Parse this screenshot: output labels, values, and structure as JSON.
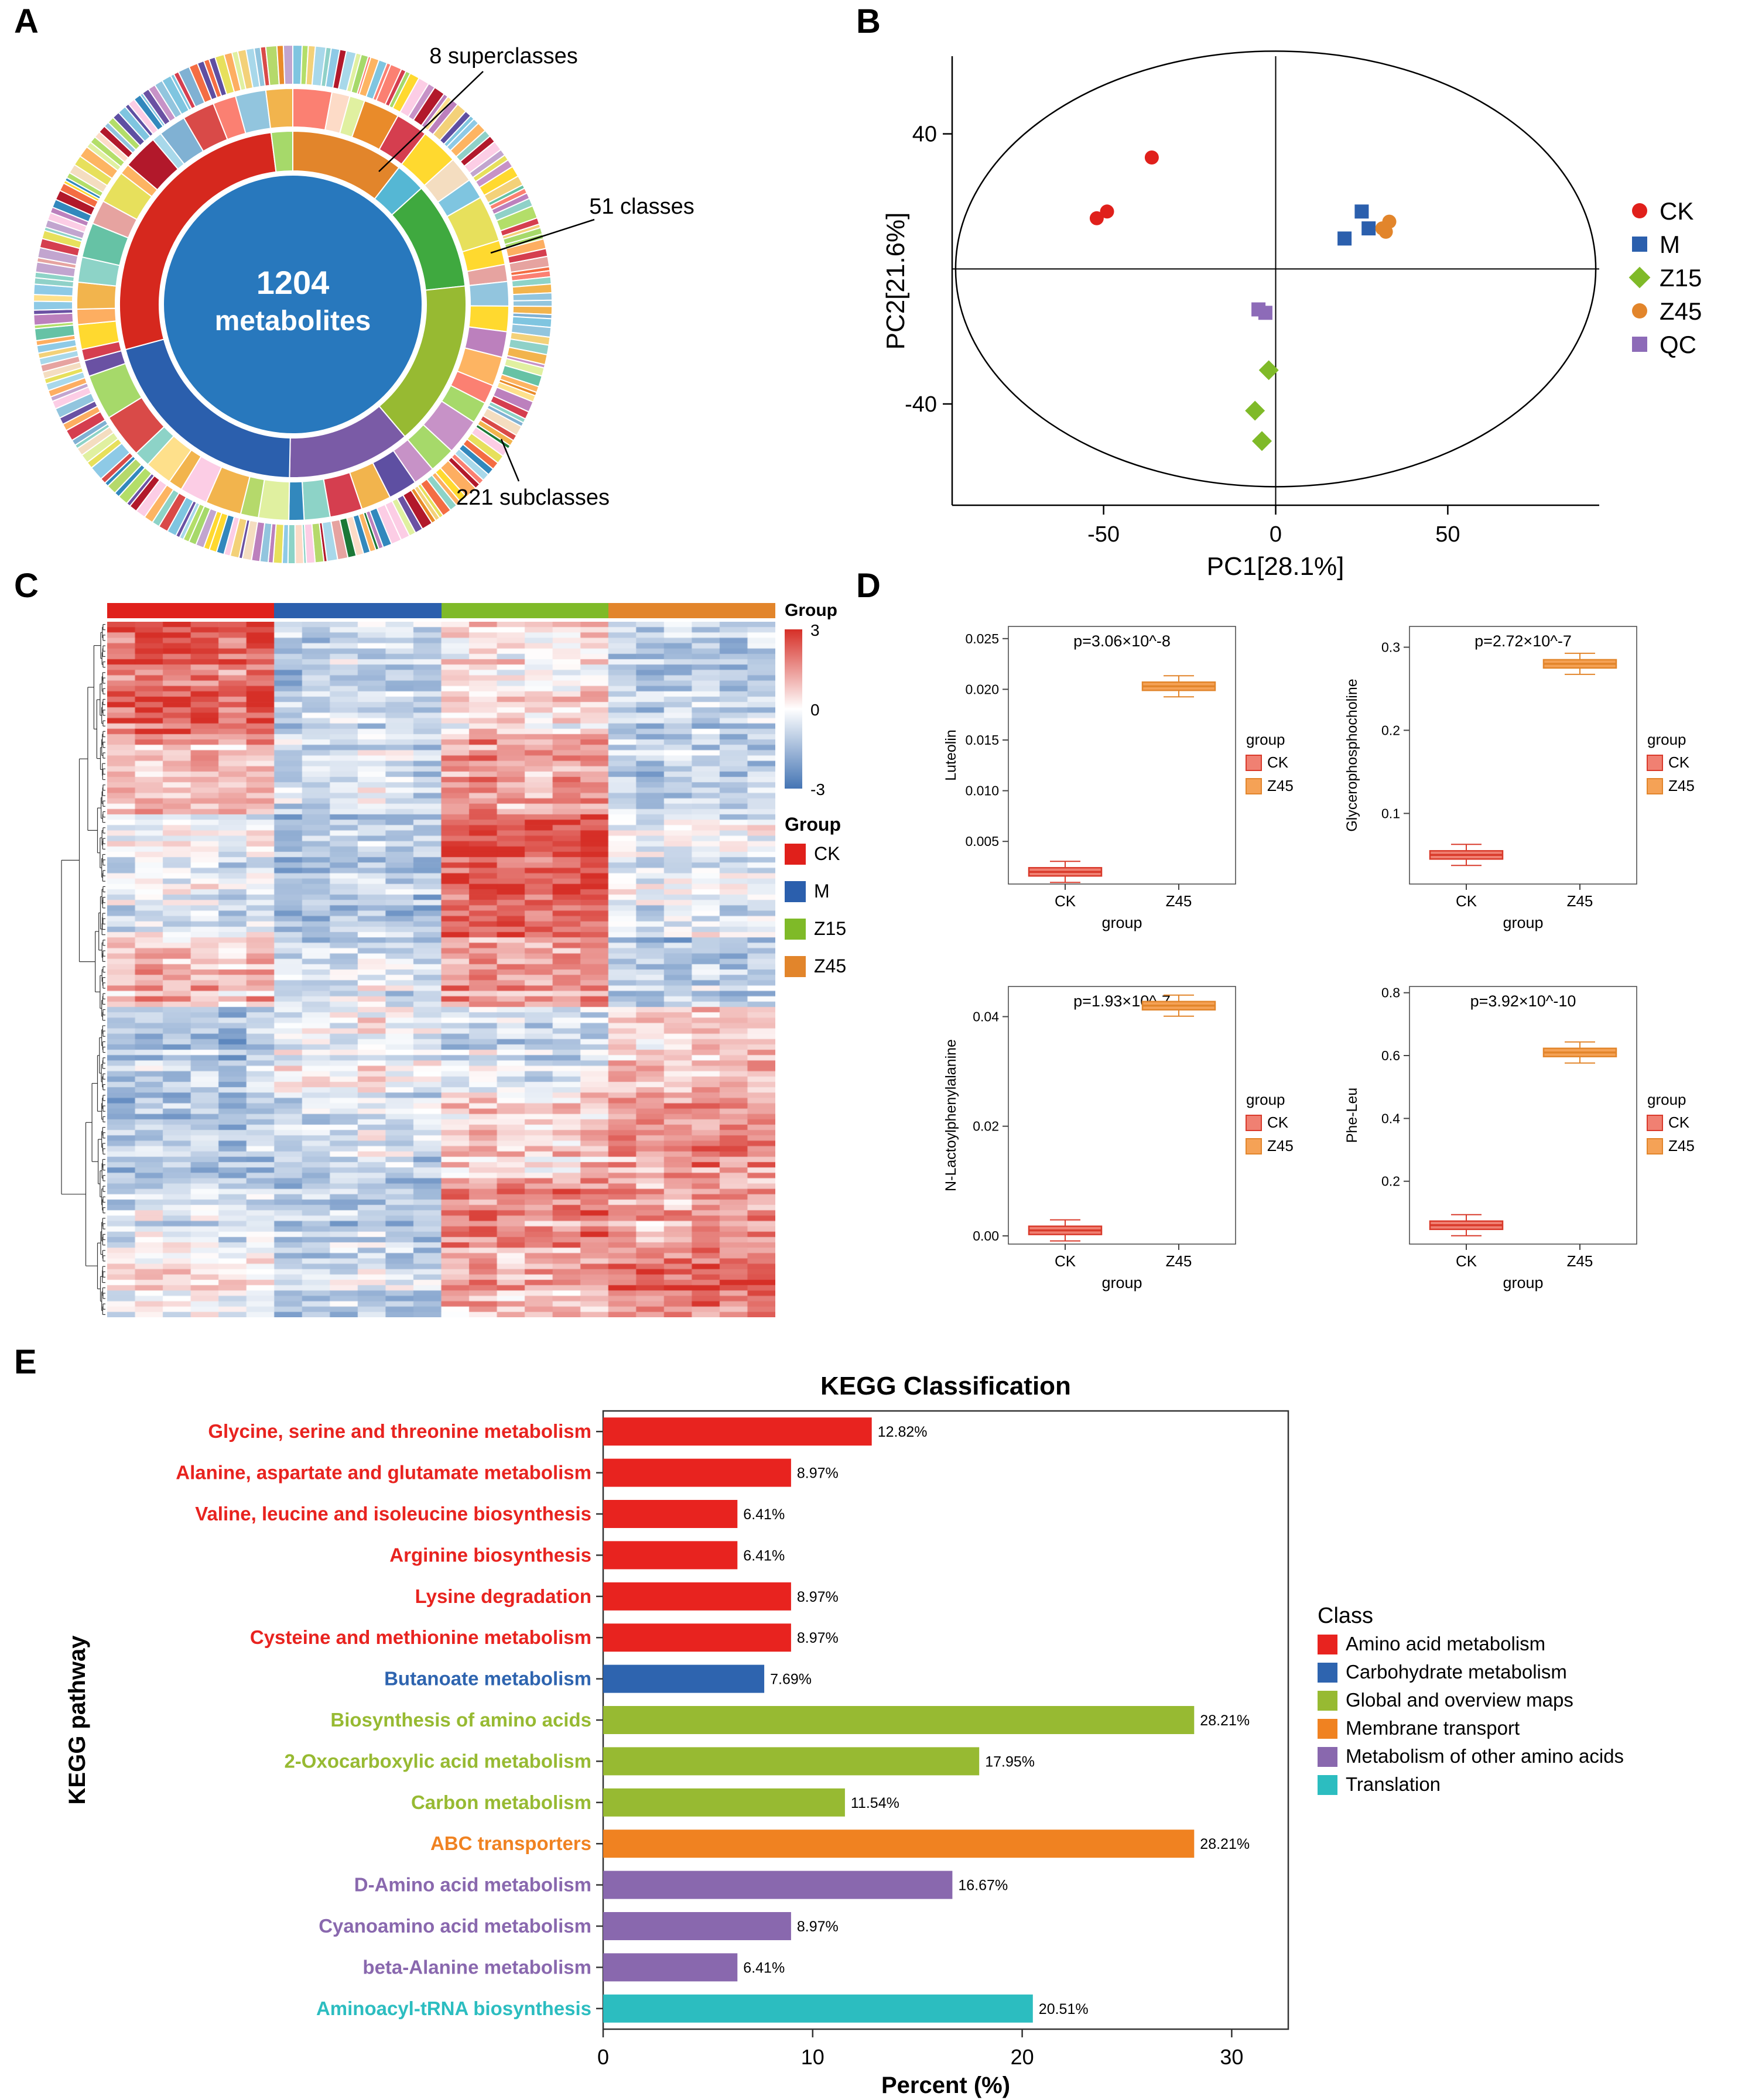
{
  "panel_labels": {
    "A": "A",
    "B": "B",
    "C": "C",
    "D": "D",
    "E": "E"
  },
  "chart_data": [
    {
      "id": "metabolite-sunburst",
      "type": "sunburst",
      "center_value": "1204",
      "center_label": "metabolites",
      "center_color": "#2878bd",
      "annotations": {
        "superclasses": "8 superclasses",
        "classes": "51 classes",
        "subclasses": "221 subclasses"
      },
      "ring_counts": {
        "superclasses": 8,
        "classes": 51,
        "subclasses": 221
      },
      "superclass_segments": [
        {
          "color": "#e2852b",
          "fraction": 0.105
        },
        {
          "color": "#55b7d4",
          "fraction": 0.028
        },
        {
          "color": "#3fa93f",
          "fraction": 0.1
        },
        {
          "color": "#97ba32",
          "fraction": 0.155
        },
        {
          "color": "#7a5ba6",
          "fraction": 0.115
        },
        {
          "color": "#2b5fad",
          "fraction": 0.205
        },
        {
          "color": "#d6281e",
          "fraction": 0.272
        },
        {
          "color": "#a6d96a",
          "fraction": 0.02
        }
      ],
      "palette": [
        "#e6a3a0",
        "#f3d179",
        "#a8d8ea",
        "#e98b2a",
        "#b5d96b",
        "#7fc5e0",
        "#d94a48",
        "#f4ddc0",
        "#8fd1c8",
        "#e7e05c",
        "#c792c7",
        "#8ecae6",
        "#f2b44d",
        "#a6d96a",
        "#6a51a3",
        "#fee08b",
        "#d53e4f",
        "#66c2a5",
        "#3288bd",
        "#f46d43",
        "#e0f0a0",
        "#fdae61",
        "#5e4fa2",
        "#b2182b",
        "#fddbc7",
        "#92c5de",
        "#1b7837",
        "#c2a5cf",
        "#ffd92f",
        "#8dd3c7",
        "#fb8072",
        "#80b1d3",
        "#fdb462",
        "#b3de69",
        "#fccde5",
        "#bc80bd"
      ]
    },
    {
      "id": "pca-scores",
      "type": "scatter",
      "xlabel": "PC1[28.1%]",
      "ylabel": "PC2[21.6%]",
      "x_ticks": [
        -50,
        0,
        50
      ],
      "y_ticks": [
        40,
        -40
      ],
      "xlim": [
        -94,
        94
      ],
      "ylim": [
        -70,
        63
      ],
      "ellipse": {
        "cx": 0,
        "cy": 0,
        "rx": 93,
        "ry": 64.5
      },
      "series": [
        {
          "name": "CK",
          "color": "#e0201b",
          "marker": "circle",
          "points": [
            [
              -52,
              15
            ],
            [
              -49,
              17
            ],
            [
              -36,
              33
            ]
          ]
        },
        {
          "name": "M",
          "color": "#2b5fad",
          "marker": "square",
          "points": [
            [
              20,
              9
            ],
            [
              25,
              17
            ],
            [
              27,
              12
            ]
          ]
        },
        {
          "name": "Z15",
          "color": "#7fba28",
          "marker": "diamond",
          "points": [
            [
              -2,
              -30
            ],
            [
              -6,
              -42
            ],
            [
              -4,
              -51
            ]
          ]
        },
        {
          "name": "Z45",
          "color": "#e2852b",
          "marker": "circle",
          "points": [
            [
              31,
              12
            ],
            [
              33,
              14
            ],
            [
              32,
              11
            ]
          ]
        },
        {
          "name": "QC",
          "color": "#8d6bb8",
          "marker": "square",
          "points": [
            [
              -5,
              -12
            ],
            [
              -3,
              -13
            ]
          ]
        }
      ]
    },
    {
      "id": "metabolite-heatmap",
      "type": "heatmap",
      "annotation_name": "Group",
      "legend_title": "Group",
      "colorbar_ticks": [
        "3",
        "0",
        "-3"
      ],
      "vmax": 3,
      "vmin": -3,
      "rows": 130,
      "cols_per_group": 6,
      "colormap": {
        "positive": "#d62f27",
        "negative": "#4575b4"
      },
      "groups": [
        {
          "name": "CK",
          "color": "#e0201b"
        },
        {
          "name": "M",
          "color": "#2b5fad"
        },
        {
          "name": "Z15",
          "color": "#7fba28"
        },
        {
          "name": "Z45",
          "color": "#e2852b"
        }
      ],
      "pattern_blocks": [
        {
          "until": 0.16,
          "means": [
            2.2,
            -0.8,
            0.4,
            -1.1
          ]
        },
        {
          "until": 0.28,
          "means": [
            1.2,
            -0.4,
            1.6,
            -0.9
          ]
        },
        {
          "until": 0.45,
          "means": [
            -0.4,
            -1.1,
            2.4,
            -0.4
          ]
        },
        {
          "until": 0.55,
          "means": [
            0.9,
            -0.6,
            1.4,
            -1.2
          ]
        },
        {
          "until": 0.68,
          "means": [
            -1.1,
            0.2,
            -0.6,
            0.9
          ]
        },
        {
          "until": 0.8,
          "means": [
            -1.4,
            -0.6,
            0.6,
            1.5
          ]
        },
        {
          "until": 0.9,
          "means": [
            -0.7,
            -1.0,
            1.7,
            1.2
          ]
        },
        {
          "until": 1.0,
          "means": [
            0.1,
            -0.8,
            1.1,
            1.9
          ]
        }
      ]
    },
    {
      "id": "box-luteolin",
      "type": "box",
      "title": "p=3.06×10^-8",
      "ylabel": "Luteolin",
      "xlabel": "group",
      "legend_title": "group",
      "categories": [
        "CK",
        "Z45"
      ],
      "medians": [
        0.002,
        0.0203
      ],
      "ylim": [
        0.0008,
        0.0262
      ],
      "y_ticks": [
        0.005,
        0.01,
        0.015,
        0.02,
        0.025
      ],
      "y_tick_labels": [
        "0.005",
        "0.010",
        "0.015",
        "0.020",
        "0.025"
      ],
      "legend": [
        {
          "name": "CK",
          "fill": "#f08072",
          "stroke": "#d93a2b"
        },
        {
          "name": "Z45",
          "fill": "#f5a256",
          "stroke": "#e2852b"
        }
      ]
    },
    {
      "id": "box-glycerophosphocholine",
      "type": "box",
      "title": "p=2.72×10^-7",
      "ylabel": "Glycerophosphocholine",
      "xlabel": "group",
      "legend_title": "group",
      "categories": [
        "CK",
        "Z45"
      ],
      "medians": [
        0.05,
        0.28
      ],
      "ylim": [
        0.015,
        0.325
      ],
      "y_ticks": [
        0.1,
        0.2,
        0.3
      ],
      "y_tick_labels": [
        "0.1",
        "0.2",
        "0.3"
      ],
      "legend": [
        {
          "name": "CK",
          "fill": "#f08072",
          "stroke": "#d93a2b"
        },
        {
          "name": "Z45",
          "fill": "#f5a256",
          "stroke": "#e2852b"
        }
      ]
    },
    {
      "id": "box-n-lactoylphenylalanine",
      "type": "box",
      "title": "p=1.93×10^-7",
      "ylabel": "N-Lactoylphenylalanine",
      "xlabel": "group",
      "legend_title": "group",
      "categories": [
        "CK",
        "Z45"
      ],
      "medians": [
        0.001,
        0.042
      ],
      "ylim": [
        -0.0015,
        0.0455
      ],
      "y_ticks": [
        0,
        0.02,
        0.04
      ],
      "y_tick_labels": [
        "0.00",
        "0.02",
        "0.04"
      ],
      "legend": [
        {
          "name": "CK",
          "fill": "#f08072",
          "stroke": "#d93a2b"
        },
        {
          "name": "Z45",
          "fill": "#f5a256",
          "stroke": "#e2852b"
        }
      ]
    },
    {
      "id": "box-phe-leu",
      "type": "box",
      "title": "p=3.92×10^-10",
      "ylabel": "Phe-Leu",
      "xlabel": "group",
      "legend_title": "group",
      "categories": [
        "CK",
        "Z45"
      ],
      "medians": [
        0.06,
        0.61
      ],
      "ylim": [
        0.0,
        0.82
      ],
      "y_ticks": [
        0.2,
        0.4,
        0.6,
        0.8
      ],
      "y_tick_labels": [
        "0.2",
        "0.4",
        "0.6",
        "0.8"
      ],
      "legend": [
        {
          "name": "CK",
          "fill": "#f08072",
          "stroke": "#d93a2b"
        },
        {
          "name": "Z45",
          "fill": "#f5a256",
          "stroke": "#e2852b"
        }
      ]
    },
    {
      "id": "kegg-classification",
      "type": "bar",
      "title": "KEGG Classification",
      "xlabel": "Percent (%)",
      "ylabel": "KEGG pathway",
      "legend_title": "Class",
      "x_ticks": [
        0,
        10,
        20,
        30
      ],
      "xlim": [
        0,
        32.7
      ],
      "classes": [
        {
          "name": "Amino acid metabolism",
          "color": "#e8231f"
        },
        {
          "name": "Carbohydrate metabolism",
          "color": "#2e64af"
        },
        {
          "name": "Global and overview maps",
          "color": "#97ba32"
        },
        {
          "name": "Membrane transport",
          "color": "#f08221"
        },
        {
          "name": "Metabolism of other amino acids",
          "color": "#8968ae"
        },
        {
          "name": "Translation",
          "color": "#2cbdc0"
        }
      ],
      "bars": [
        {
          "pathway": "Glycine, serine and threonine metabolism",
          "value": 12.82,
          "label": "12.82%",
          "class": 0
        },
        {
          "pathway": "Alanine, aspartate and glutamate metabolism",
          "value": 8.97,
          "label": "8.97%",
          "class": 0
        },
        {
          "pathway": "Valine, leucine and isoleucine biosynthesis",
          "value": 6.41,
          "label": "6.41%",
          "class": 0
        },
        {
          "pathway": "Arginine biosynthesis",
          "value": 6.41,
          "label": "6.41%",
          "class": 0
        },
        {
          "pathway": "Lysine degradation",
          "value": 8.97,
          "label": "8.97%",
          "class": 0
        },
        {
          "pathway": "Cysteine and methionine metabolism",
          "value": 8.97,
          "label": "8.97%",
          "class": 0
        },
        {
          "pathway": "Butanoate metabolism",
          "value": 7.69,
          "label": "7.69%",
          "class": 1
        },
        {
          "pathway": "Biosynthesis of amino acids",
          "value": 28.21,
          "label": "28.21%",
          "class": 2
        },
        {
          "pathway": "2-Oxocarboxylic acid metabolism",
          "value": 17.95,
          "label": "17.95%",
          "class": 2
        },
        {
          "pathway": "Carbon metabolism",
          "value": 11.54,
          "label": "11.54%",
          "class": 2
        },
        {
          "pathway": "ABC transporters",
          "value": 28.21,
          "label": "28.21%",
          "class": 3
        },
        {
          "pathway": "D-Amino acid metabolism",
          "value": 16.67,
          "label": "16.67%",
          "class": 4
        },
        {
          "pathway": "Cyanoamino acid metabolism",
          "value": 8.97,
          "label": "8.97%",
          "class": 4
        },
        {
          "pathway": "beta-Alanine metabolism",
          "value": 6.41,
          "label": "6.41%",
          "class": 4
        },
        {
          "pathway": "Aminoacyl-tRNA biosynthesis",
          "value": 20.51,
          "label": "20.51%",
          "class": 5
        }
      ]
    }
  ]
}
